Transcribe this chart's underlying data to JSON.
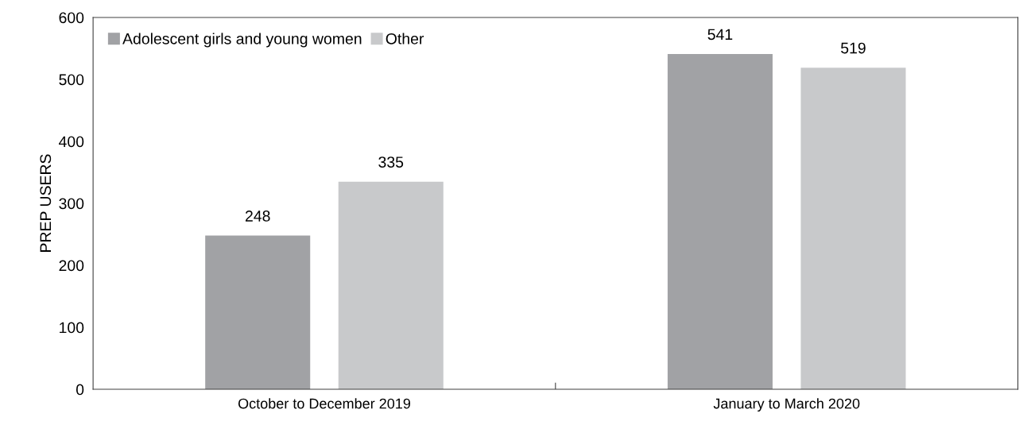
{
  "chart_data": {
    "type": "bar",
    "ylabel": "PREP USERS",
    "categories": [
      "October to December 2019",
      "January to March 2020"
    ],
    "series": [
      {
        "name": "Adolescent girls and young women",
        "color": "#a1a2a5",
        "values": [
          248,
          541
        ]
      },
      {
        "name": "Other",
        "color": "#c8c9cb",
        "values": [
          335,
          519
        ]
      }
    ],
    "ylim": [
      0,
      600
    ],
    "yticks": [
      0,
      100,
      200,
      300,
      400,
      500,
      600
    ],
    "data_labels": true,
    "grid": false,
    "legend": "top left"
  }
}
